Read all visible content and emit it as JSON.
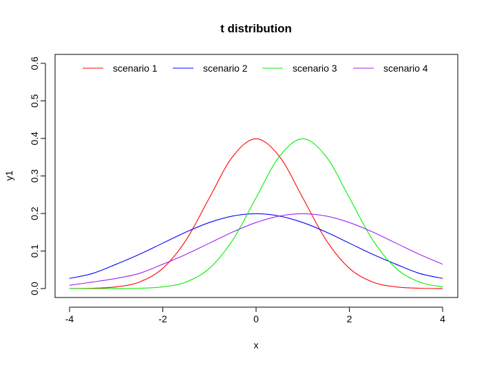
{
  "chart_data": {
    "type": "line",
    "title": "t distribution",
    "xlabel": "x",
    "ylabel": "y1",
    "xlim": [
      -4,
      4
    ],
    "ylim": [
      0,
      0.6
    ],
    "x_ticks": [
      -4,
      -2,
      0,
      2,
      4
    ],
    "x_tick_labels": [
      "-4",
      "-2",
      "0",
      "2",
      "4"
    ],
    "y_ticks": [
      0,
      0.1,
      0.2,
      0.3,
      0.4,
      0.5,
      0.6
    ],
    "y_tick_labels": [
      "0.0",
      "0.1",
      "0.2",
      "0.3",
      "0.4",
      "0.5",
      "0.6"
    ],
    "grid": false,
    "legend_position": "top",
    "x": [
      -4,
      -3.5,
      -3,
      -2.5,
      -2,
      -1.5,
      -1,
      -0.5,
      0,
      0.5,
      1,
      1.5,
      2,
      2.5,
      3,
      3.5,
      4
    ],
    "series": [
      {
        "name": "scenario 1",
        "color": "#ff0000",
        "values": [
          0.0001,
          0.0009,
          0.0044,
          0.0175,
          0.054,
          0.1295,
          0.242,
          0.3521,
          0.3989,
          0.3521,
          0.242,
          0.1295,
          0.054,
          0.0175,
          0.0044,
          0.0009,
          0.0001
        ]
      },
      {
        "name": "scenario 2",
        "color": "#0000ff",
        "values": [
          0.027,
          0.0405,
          0.0648,
          0.0913,
          0.121,
          0.1506,
          0.176,
          0.1933,
          0.1995,
          0.1933,
          0.176,
          0.1506,
          0.121,
          0.0913,
          0.0648,
          0.0405,
          0.027
        ]
      },
      {
        "name": "scenario 3",
        "color": "#00ee00",
        "values": [
          0.0,
          0.0,
          0.0001,
          0.0009,
          0.0044,
          0.0175,
          0.054,
          0.1295,
          0.242,
          0.3521,
          0.3989,
          0.3521,
          0.242,
          0.1295,
          0.054,
          0.0175,
          0.0044
        ]
      },
      {
        "name": "scenario 4",
        "color": "#a020f0",
        "values": [
          0.0088,
          0.0175,
          0.027,
          0.0405,
          0.0648,
          0.0913,
          0.121,
          0.1506,
          0.176,
          0.1933,
          0.1995,
          0.1933,
          0.176,
          0.1506,
          0.121,
          0.0913,
          0.0648
        ]
      }
    ]
  }
}
